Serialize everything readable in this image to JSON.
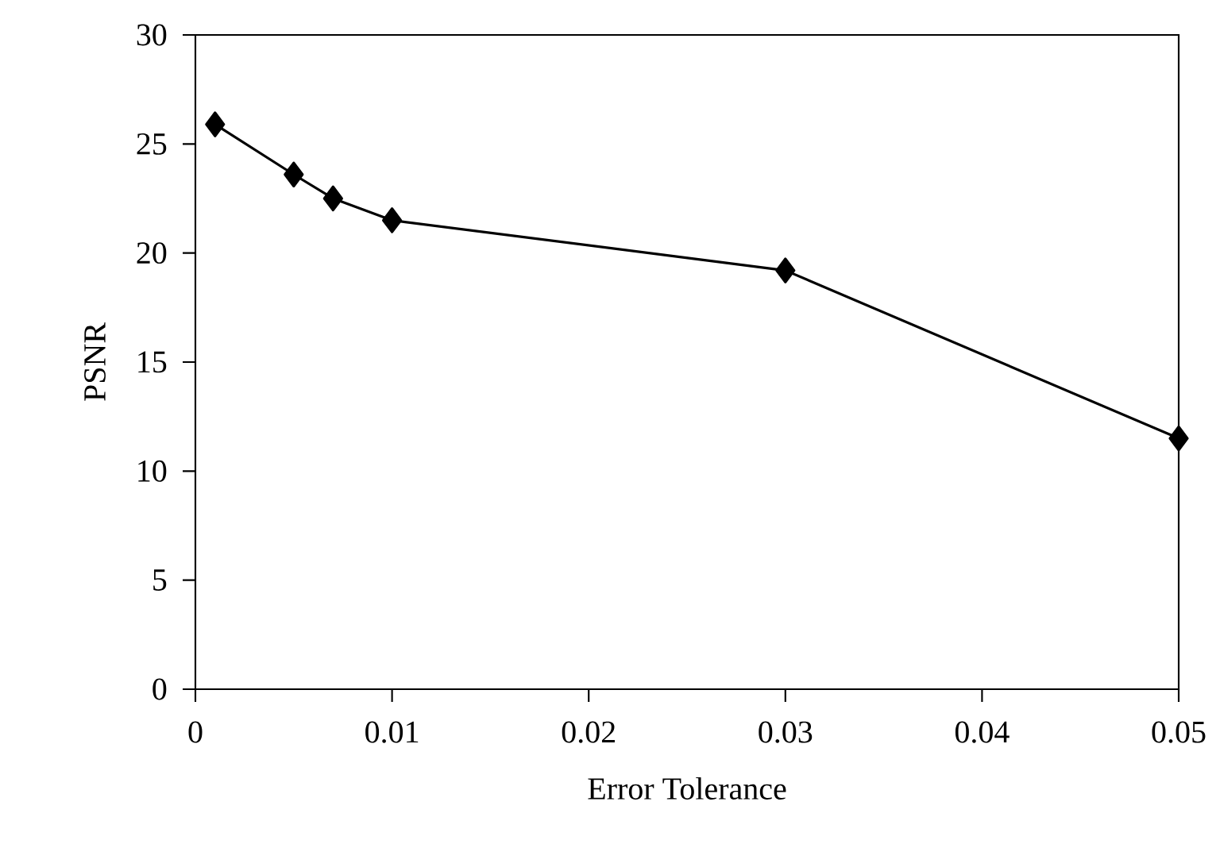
{
  "chart_data": {
    "type": "line",
    "xlabel": "Error Tolerance",
    "ylabel": "PSNR",
    "x": [
      0.001,
      0.005,
      0.007,
      0.01,
      0.03,
      0.05
    ],
    "series": [
      {
        "color": "#000000",
        "values": [
          25.9,
          23.6,
          22.5,
          21.5,
          19.2,
          11.5
        ]
      }
    ],
    "xlim": [
      0,
      0.05
    ],
    "ylim": [
      0,
      30
    ],
    "xticks": [
      0,
      0.01,
      0.02,
      0.03,
      0.04,
      0.05
    ],
    "yticks": [
      0,
      5,
      10,
      15,
      20,
      25,
      30
    ],
    "marker": "diamond",
    "line_style": "solid"
  }
}
